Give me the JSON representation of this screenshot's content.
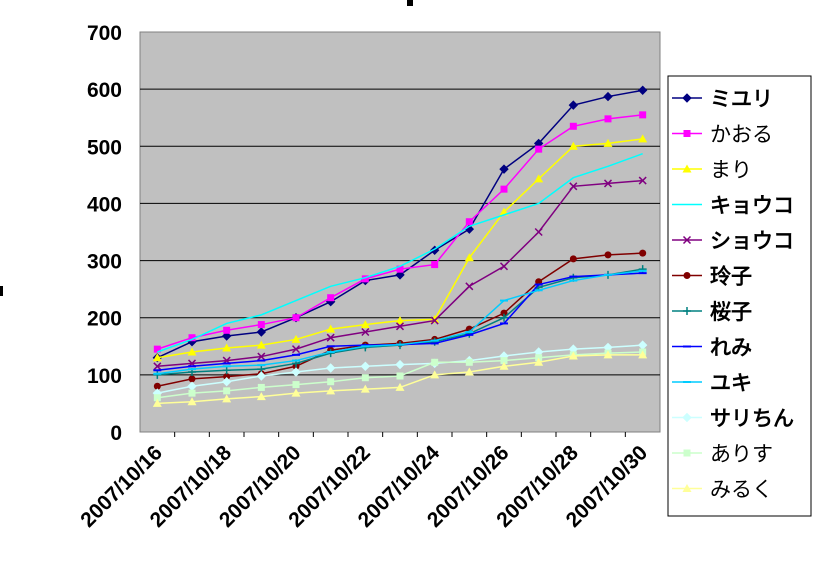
{
  "chart_data": {
    "type": "line",
    "title": "",
    "xlabel": "",
    "ylabel": "",
    "ylim": [
      0,
      700
    ],
    "y_ticks": [
      "0",
      "100",
      "200",
      "300",
      "400",
      "500",
      "600",
      "700"
    ],
    "x_ticks": [
      "2007/10/16",
      "2007/10/18",
      "2007/10/20",
      "2007/10/22",
      "2007/10/24",
      "2007/10/26",
      "2007/10/28",
      "2007/10/30"
    ],
    "categories": [
      "2007/10/16",
      "2007/10/17",
      "2007/10/18",
      "2007/10/19",
      "2007/10/20",
      "2007/10/21",
      "2007/10/22",
      "2007/10/23",
      "2007/10/24",
      "2007/10/25",
      "2007/10/26",
      "2007/10/27",
      "2007/10/28",
      "2007/10/29",
      "2007/10/30"
    ],
    "grid": "horizontal",
    "legend_position": "right",
    "series": [
      {
        "name": "ミユリ",
        "bold": true,
        "color": "#000080",
        "marker": "diamond",
        "values": [
          130,
          158,
          168,
          175,
          200,
          228,
          265,
          275,
          318,
          355,
          460,
          505,
          572,
          587,
          598
        ]
      },
      {
        "name": "かおる",
        "bold": false,
        "color": "#ff00ff",
        "marker": "square",
        "values": [
          145,
          165,
          178,
          188,
          200,
          235,
          268,
          285,
          293,
          368,
          425,
          495,
          535,
          548,
          555
        ]
      },
      {
        "name": "まり",
        "bold": false,
        "color": "#ffff00",
        "marker": "triangle",
        "values": [
          130,
          140,
          147,
          152,
          162,
          180,
          188,
          195,
          197,
          305,
          385,
          443,
          500,
          505,
          513
        ]
      },
      {
        "name": "キョウコ",
        "bold": true,
        "color": "#00ffff",
        "marker": "none",
        "values": [
          140,
          162,
          190,
          205,
          230,
          255,
          270,
          290,
          320,
          360,
          380,
          400,
          445,
          465,
          487
        ]
      },
      {
        "name": "ショウコ",
        "bold": true,
        "color": "#800080",
        "marker": "x",
        "values": [
          115,
          120,
          125,
          132,
          145,
          165,
          175,
          185,
          195,
          255,
          290,
          350,
          430,
          435,
          440
        ]
      },
      {
        "name": "玲子",
        "bold": true,
        "color": "#800000",
        "marker": "circle",
        "values": [
          80,
          93,
          97,
          102,
          115,
          143,
          152,
          155,
          162,
          180,
          208,
          263,
          303,
          310,
          313
        ]
      },
      {
        "name": "桜子",
        "bold": true,
        "color": "#008080",
        "marker": "plus",
        "values": [
          100,
          105,
          108,
          110,
          120,
          138,
          148,
          152,
          158,
          172,
          200,
          253,
          270,
          275,
          285
        ]
      },
      {
        "name": "れみ",
        "bold": true,
        "color": "#0000ff",
        "marker": "dash",
        "values": [
          108,
          115,
          120,
          125,
          135,
          150,
          152,
          153,
          155,
          170,
          190,
          258,
          272,
          275,
          278
        ]
      },
      {
        "name": "ユキ",
        "bold": true,
        "color": "#00ccff",
        "marker": "dash",
        "values": [
          102,
          110,
          115,
          117,
          125,
          140,
          150,
          153,
          160,
          175,
          230,
          248,
          265,
          275,
          282
        ]
      },
      {
        "name": "サリちん",
        "bold": true,
        "color": "#ccffff",
        "marker": "diamond",
        "values": [
          68,
          80,
          88,
          98,
          105,
          112,
          115,
          118,
          120,
          125,
          133,
          140,
          145,
          148,
          152
        ]
      },
      {
        "name": "ありす",
        "bold": false,
        "color": "#ccffcc",
        "marker": "square",
        "values": [
          60,
          68,
          72,
          78,
          83,
          88,
          95,
          98,
          122,
          122,
          125,
          130,
          135,
          138,
          140
        ]
      },
      {
        "name": "みるく",
        "bold": false,
        "color": "#ffff99",
        "marker": "triangle",
        "values": [
          50,
          53,
          58,
          62,
          68,
          72,
          75,
          78,
          100,
          105,
          115,
          122,
          133,
          135,
          135
        ]
      }
    ]
  }
}
